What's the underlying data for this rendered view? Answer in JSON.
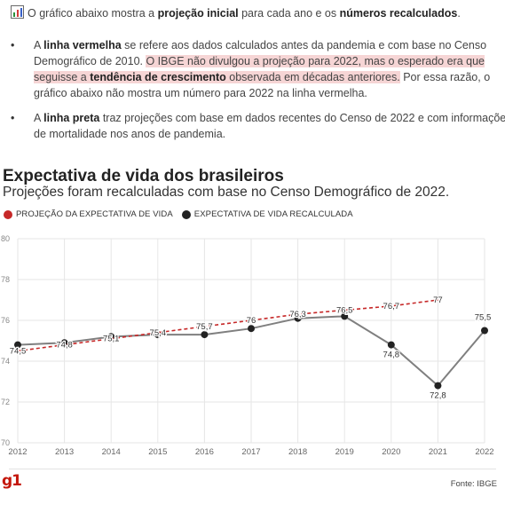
{
  "intro": {
    "prefix": "O gráfico abaixo mostra a ",
    "bold1": "projeção inicial",
    "mid": " para cada ano e os ",
    "bold2": "números recalculados",
    "suffix": "."
  },
  "bullets": [
    {
      "prefix": "A ",
      "bold": "linha vermelha",
      "text1": " se refere aos dados calculados antes da pandemia e com base no Censo Demográfico de 2010. ",
      "highlight1": "O IBGE não divulgou a projeção para 2022, mas o esperado era que seguisse a ",
      "highlight_bold": "tendência de crescimento",
      "highlight2": " observada em décadas anteriores.",
      "text2": " Por essa razão, o gráfico abaixo não mostra um número para 2022 na linha vermelha."
    },
    {
      "prefix": "A ",
      "bold": "linha preta",
      "text1": " traz projeções com base em dados recentes do Censo de 2022 e com informações de mortalidade nos anos de pandemia."
    }
  ],
  "title": "Expectativa de vida dos brasileiros",
  "subtitle": "Projeções foram recalculadas com base no Censo Demográfico de 2022.",
  "logo": "g1",
  "source": "Fonte: IBGE",
  "colors": {
    "projection": "#c62828",
    "recalculated": "#222222",
    "recalc_line": "#7f7f7f",
    "grid": "#e6e6e6"
  },
  "chart_data": {
    "type": "line",
    "x": [
      2012,
      2013,
      2014,
      2015,
      2016,
      2017,
      2018,
      2019,
      2020,
      2021,
      2022
    ],
    "ylim": [
      70,
      80
    ],
    "yticks": [
      70,
      72,
      74,
      76,
      78,
      80
    ],
    "grid": true,
    "legend_position": "top-left",
    "series": [
      {
        "name": "PROJEÇÃO DA EXPECTATIVA DE VIDA",
        "style": "dashed",
        "values": [
          74.5,
          74.8,
          75.1,
          75.4,
          75.7,
          76.0,
          76.3,
          76.5,
          76.7,
          77.0,
          null
        ],
        "labels": [
          "74,5",
          "74,8",
          "75,1",
          "75,4",
          "75,7",
          "76",
          "76,3",
          "76,5",
          "76,7",
          "77",
          ""
        ]
      },
      {
        "name": "EXPECTATIVA DE VIDA RECALCULADA",
        "style": "solid",
        "values": [
          74.8,
          74.9,
          75.2,
          75.3,
          75.3,
          75.6,
          76.1,
          76.2,
          74.8,
          72.8,
          75.5
        ],
        "labels": [
          "",
          "",
          "",
          "",
          "",
          "",
          "",
          "",
          "74,8",
          "72,8",
          "75,5"
        ]
      }
    ]
  }
}
